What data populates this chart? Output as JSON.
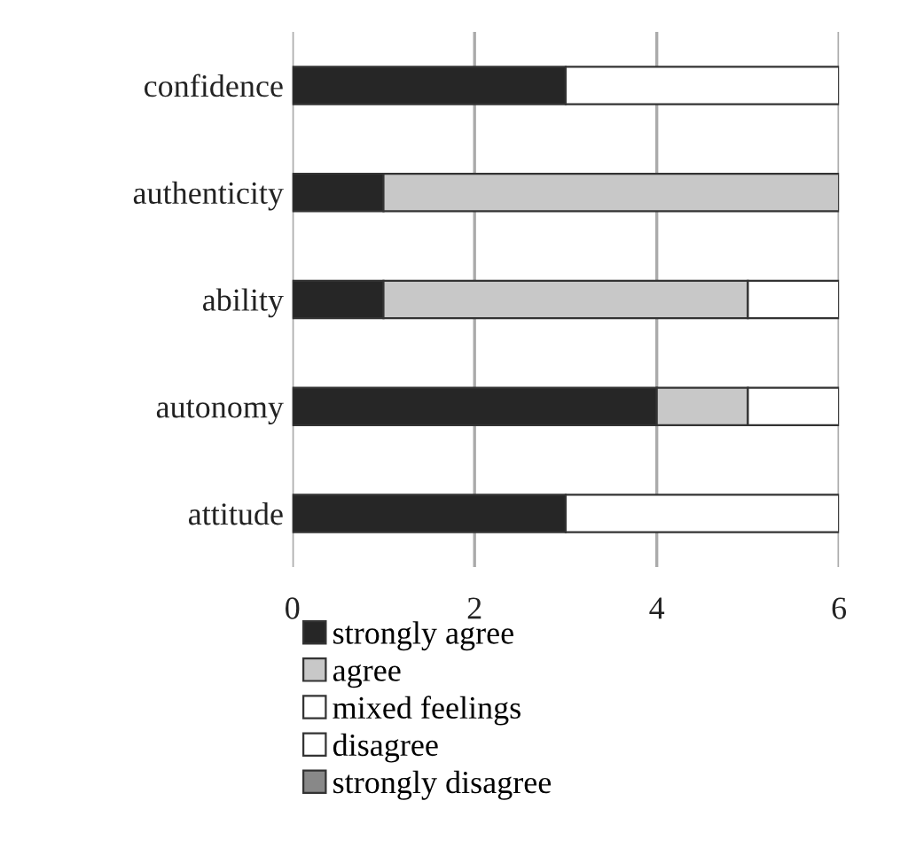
{
  "chart_data": {
    "type": "bar",
    "orientation": "horizontal",
    "stacked": true,
    "categories": [
      "confidence",
      "authenticity",
      "ability",
      "autonomy",
      "attitude"
    ],
    "series": [
      {
        "name": "strongly agree",
        "color": "#262626",
        "values": [
          3,
          1,
          1,
          4,
          3
        ]
      },
      {
        "name": "agree",
        "color": "#c8c8c8",
        "values": [
          0,
          5,
          4,
          1,
          0
        ]
      },
      {
        "name": "mixed feelings",
        "color": "#ffffff",
        "values": [
          3,
          0,
          1,
          1,
          3
        ]
      },
      {
        "name": "disagree",
        "color": "#ffffff",
        "values": [
          0,
          0,
          0,
          0,
          0
        ]
      },
      {
        "name": "strongly disagree",
        "color": "#888888",
        "values": [
          0,
          0,
          0,
          0,
          0
        ]
      }
    ],
    "xlim": [
      0,
      6
    ],
    "xticks": [
      0,
      2,
      4,
      6
    ],
    "grid": "x",
    "legend": "bottom"
  }
}
